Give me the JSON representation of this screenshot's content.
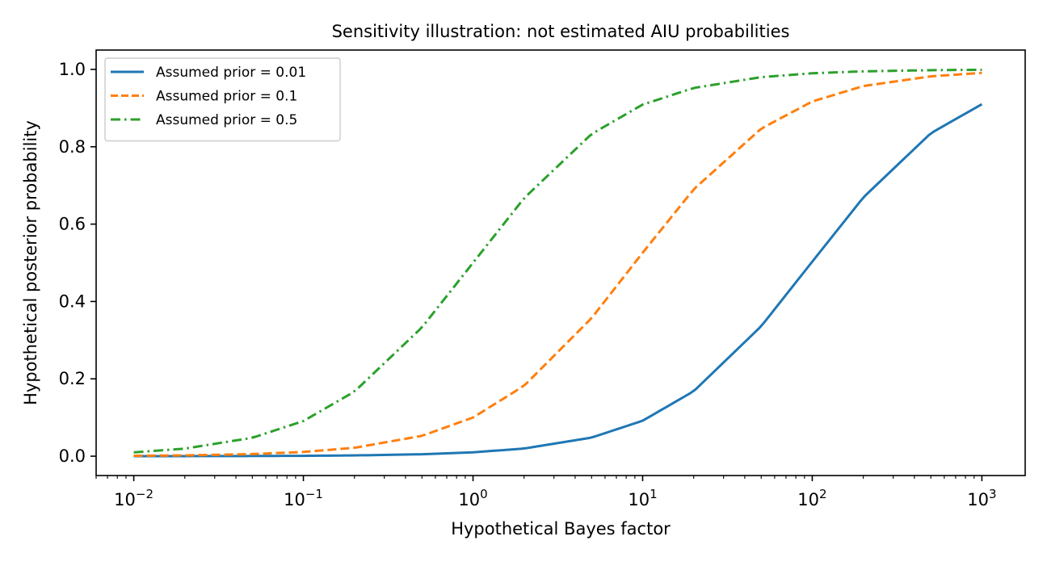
{
  "chart_data": {
    "type": "line",
    "title": "Sensitivity illustration: not estimated AIU probabilities",
    "xlabel": "Hypothetical Bayes factor",
    "ylabel": "Hypothetical posterior probability",
    "x_scale": "log",
    "xlim": [
      0.006,
      1800
    ],
    "ylim": [
      -0.05,
      1.05
    ],
    "x_ticks": [
      0.01,
      0.1,
      1,
      10,
      100,
      1000
    ],
    "x_tick_labels": [
      {
        "base": "10",
        "exp": "−2"
      },
      {
        "base": "10",
        "exp": "−1"
      },
      {
        "base": "10",
        "exp": "0"
      },
      {
        "base": "10",
        "exp": "1"
      },
      {
        "base": "10",
        "exp": "2"
      },
      {
        "base": "10",
        "exp": "3"
      }
    ],
    "y_ticks": [
      0.0,
      0.2,
      0.4,
      0.6,
      0.8,
      1.0
    ],
    "y_tick_labels": [
      "0.0",
      "0.2",
      "0.4",
      "0.6",
      "0.8",
      "1.0"
    ],
    "grid": false,
    "legend_position": "upper-left",
    "x": [
      0.01,
      0.02,
      0.05,
      0.1,
      0.2,
      0.5,
      1,
      2,
      5,
      10,
      20,
      50,
      100,
      200,
      500,
      1000
    ],
    "series": [
      {
        "name": "Assumed prior = 0.01",
        "color": "#1f77b4",
        "style": "solid",
        "values": [
          0.0001,
          0.0002,
          0.0005,
          0.001,
          0.002,
          0.005,
          0.01,
          0.0198,
          0.0481,
          0.0917,
          0.168,
          0.336,
          0.503,
          0.669,
          0.835,
          0.91
        ]
      },
      {
        "name": "Assumed prior = 0.1",
        "color": "#ff7f0e",
        "style": "dashed",
        "values": [
          0.0011,
          0.0022,
          0.0055,
          0.011,
          0.0217,
          0.0526,
          0.1,
          0.182,
          0.357,
          0.526,
          0.69,
          0.847,
          0.917,
          0.957,
          0.982,
          0.991
        ]
      },
      {
        "name": "Assumed prior = 0.5",
        "color": "#2ca02c",
        "style": "dashdot",
        "values": [
          0.0099,
          0.0196,
          0.0476,
          0.0909,
          0.167,
          0.333,
          0.5,
          0.667,
          0.833,
          0.909,
          0.952,
          0.98,
          0.99,
          0.995,
          0.998,
          0.999
        ]
      }
    ]
  }
}
